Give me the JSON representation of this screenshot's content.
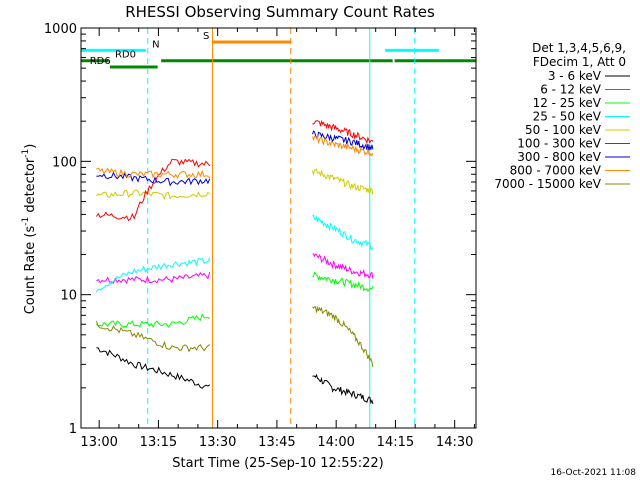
{
  "chart_data": {
    "type": "line",
    "title": "RHESSI Observing Summary Count Rates",
    "xlabel": "Start Time (25-Sep-10 12:55:22)",
    "ylabel": "Count Rate (s",
    "ylabel_sup": "-1",
    "ylabel_mid": " detector",
    "ylabel_sup2": "-1",
    "ylabel_end": ")",
    "footer": "16-Oct-2021 11:08",
    "xaxis": {
      "start_minute": 775.4,
      "end_minute": 875.4,
      "ticks": [
        780,
        795,
        810,
        825,
        840,
        855,
        870
      ],
      "tick_labels": [
        "13:00",
        "13:15",
        "13:30",
        "13:45",
        "14:00",
        "14:15",
        "14:30"
      ]
    },
    "yaxis": {
      "scale": "log",
      "ylim": [
        1,
        1000
      ],
      "ticks": [
        1,
        10,
        100,
        1000
      ],
      "tick_labels": [
        "1",
        "10",
        "100",
        "1000"
      ]
    },
    "legend": {
      "position": "right",
      "header": [
        "Det 1,3,4,5,6,9,",
        "FDecim 1, Att 0"
      ]
    },
    "series": [
      {
        "name": "3 - 6 keV",
        "color": "#000000",
        "seg1": [
          4,
          3,
          2.5,
          2.0
        ],
        "seg2": [
          2.5,
          2.0,
          1.8,
          1.6
        ]
      },
      {
        "name": "6 - 12 keV",
        "color": "#ff00ff",
        "seg1": [
          13,
          13,
          13,
          14
        ],
        "seg2": [
          20,
          17,
          15,
          14
        ]
      },
      {
        "name": "12 - 25 keV",
        "color": "#00ff00",
        "seg1": [
          6,
          6,
          6,
          7
        ],
        "seg2": [
          14,
          13,
          12,
          11
        ]
      },
      {
        "name": "25 - 50 keV",
        "color": "#00ffff",
        "seg1": [
          11,
          15,
          17,
          18
        ],
        "seg2": [
          38,
          32,
          26,
          23
        ]
      },
      {
        "name": "50 - 100 keV",
        "color": "#cccc00",
        "seg1": [
          55,
          58,
          55,
          58
        ],
        "seg2": [
          85,
          75,
          65,
          60
        ]
      },
      {
        "name": "100 - 300 keV",
        "color": "#ff0000",
        "seg1": [
          40,
          38,
          100,
          95
        ],
        "seg2": [
          200,
          180,
          160,
          140
        ]
      },
      {
        "name": "300 - 800 keV",
        "color": "#0000cc",
        "seg1": [
          80,
          75,
          70,
          72
        ],
        "seg2": [
          160,
          150,
          140,
          125
        ]
      },
      {
        "name": "800 - 7000 keV",
        "color": "#ff8800",
        "seg1": [
          85,
          80,
          80,
          80
        ],
        "seg2": [
          150,
          135,
          125,
          115
        ]
      },
      {
        "name": "7000 - 15000 keV",
        "color": "#888800",
        "seg1": [
          6,
          5,
          4,
          4
        ],
        "seg2": [
          8,
          7,
          5,
          3
        ]
      }
    ],
    "segments_time": {
      "seg1": [
        779.3,
        808.0
      ],
      "seg2": [
        834.0,
        849.3
      ]
    },
    "flags": [
      {
        "label": "N",
        "color": "#00ffff",
        "bar_y": 50.4,
        "spans": [
          [
            775.4,
            791.8
          ],
          [
            852.4,
            866.0
          ]
        ],
        "label_x": 793.4
      },
      {
        "label": "S",
        "color": "#ff8800",
        "bar_y": 42.0,
        "spans": [
          [
            808.5,
            828.5
          ]
        ],
        "label_x": 806.3
      },
      {
        "label": "RD0",
        "color": "#008800",
        "bar_y": 60.7,
        "spans": [
          [
            775.4,
            782.4
          ],
          [
            795.7,
            854.3
          ],
          [
            854.8,
            875.4
          ]
        ],
        "label_x": 784.0
      },
      {
        "label": "RD6",
        "color": "#008800",
        "bar_y": 67.0,
        "spans": [
          [
            782.7,
            794.8
          ]
        ],
        "label_x": 777.6
      }
    ],
    "vlines": [
      {
        "minute": 792.3,
        "color": "#00ffff",
        "dashed": true
      },
      {
        "minute": 808.7,
        "color": "#ff8800",
        "dashed": false
      },
      {
        "minute": 828.5,
        "color": "#ff8800",
        "dashed": true
      },
      {
        "minute": 848.5,
        "color": "#00ffff",
        "dashed": false
      },
      {
        "minute": 859.9,
        "color": "#00ffff",
        "dashed": true
      }
    ]
  }
}
